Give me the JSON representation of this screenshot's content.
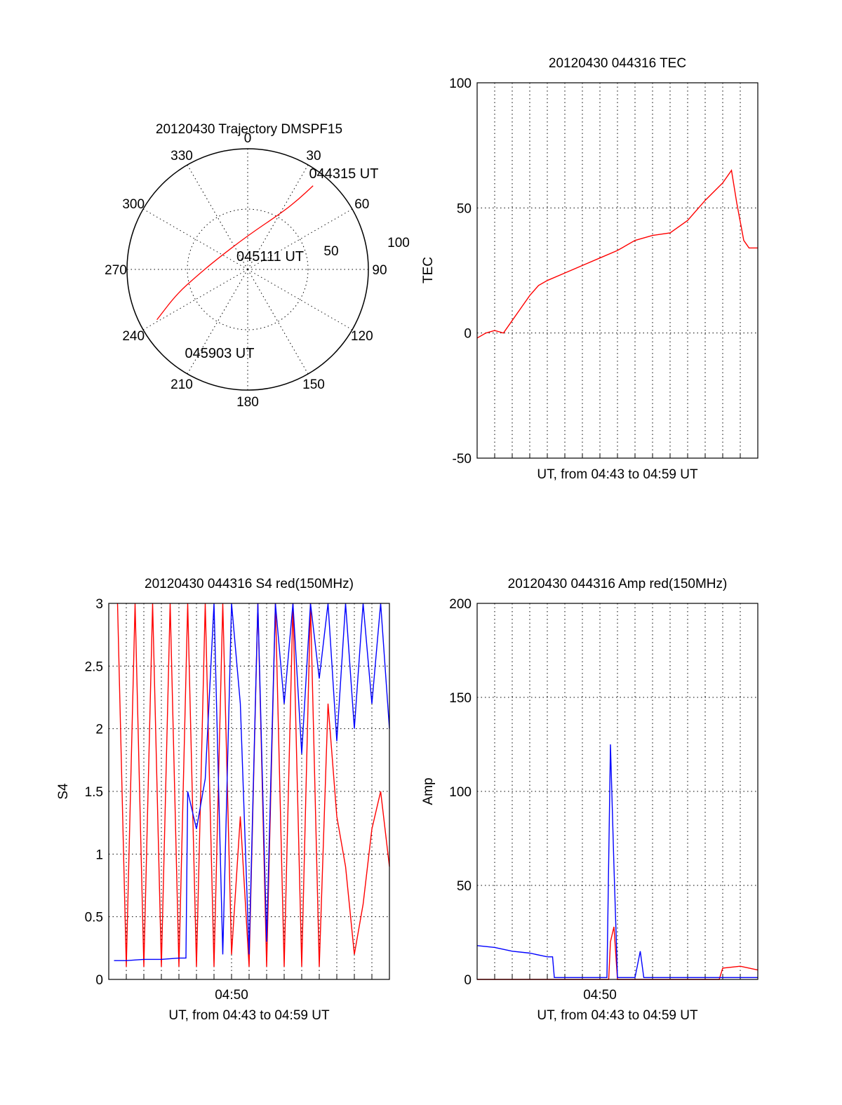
{
  "colors": {
    "red": "#ff0000",
    "blue": "#0000ff",
    "axis": "#000000",
    "background": "#ffffff"
  },
  "chart_data": [
    {
      "id": "trajectory",
      "type": "polar",
      "title": "20120430 Trajectory DMSPF15",
      "angle_labels": [
        "0",
        "30",
        "60",
        "90",
        "120",
        "150",
        "180",
        "210",
        "240",
        "270",
        "300",
        "330"
      ],
      "radial_labels": [
        "50",
        "100"
      ],
      "rlim": [
        0,
        100
      ],
      "grid": true,
      "series": [
        {
          "color": "red",
          "points": [
            {
              "az": 38,
              "r": 88
            },
            {
              "az": 36,
              "r": 72
            },
            {
              "az": 31,
              "r": 55
            },
            {
              "az": 0,
              "r": 28
            },
            {
              "az": 285,
              "r": 28
            },
            {
              "az": 263,
              "r": 42
            },
            {
              "az": 251,
              "r": 62
            },
            {
              "az": 241,
              "r": 86
            }
          ]
        }
      ],
      "annotations": [
        {
          "text": "044315 UT",
          "az": 38,
          "r": 94
        },
        {
          "text": "045111 UT",
          "az": 355,
          "r": 18
        },
        {
          "text": "045903 UT",
          "az": 232,
          "r": 88
        }
      ]
    },
    {
      "id": "tec",
      "type": "line",
      "title": "20120430 044316 TEC",
      "xlabel": "UT, from 04:43 to 04:59 UT",
      "ylabel": "TEC",
      "xlim_minutes": [
        0,
        16
      ],
      "ylim": [
        -50,
        100
      ],
      "yticks": [
        -50,
        0,
        50,
        100
      ],
      "grid": true,
      "series": [
        {
          "color": "red",
          "x": [
            0,
            0.5,
            1.0,
            1.5,
            2.0,
            2.5,
            3.0,
            3.5,
            4.0,
            5.0,
            6.0,
            7.0,
            8.0,
            9.0,
            10.0,
            11.0,
            12.0,
            13.0,
            14.0,
            14.5,
            14.8,
            15.2,
            15.5,
            16.0
          ],
          "y": [
            -2,
            0,
            1,
            0,
            5,
            10,
            15,
            19,
            21,
            24,
            27,
            30,
            33,
            37,
            39,
            40,
            45,
            53,
            60,
            65,
            52,
            37,
            34,
            34
          ]
        }
      ]
    },
    {
      "id": "s4",
      "type": "line",
      "title": "20120430 044316 S4 red(150MHz)",
      "xlabel": "UT, from 04:43 to 04:59 UT",
      "ylabel": "S4",
      "xticklabels": [
        {
          "minute": 7,
          "label": "04:50"
        }
      ],
      "xlim_minutes": [
        0,
        16
      ],
      "ylim": [
        0,
        3
      ],
      "yticks": [
        "0",
        "0.5",
        "1",
        "1.5",
        "2",
        "2.5",
        "3"
      ],
      "grid": true,
      "series": [
        {
          "color": "red",
          "x": [
            0.5,
            1.0,
            1.5,
            2.0,
            2.5,
            3.0,
            3.5,
            4.0,
            4.5,
            5.0,
            5.5,
            6.0,
            6.5,
            7.0,
            7.5,
            8.0,
            8.5,
            9.0,
            9.5,
            10.0,
            10.5,
            11.0,
            11.5,
            12.0,
            12.5,
            13.0,
            13.5,
            14.0,
            14.5,
            15.0,
            15.5,
            16.0
          ],
          "y": [
            3,
            0.1,
            3,
            0.1,
            3,
            0.1,
            3,
            0.1,
            3,
            0.1,
            3,
            0.1,
            3,
            0.2,
            1.3,
            0.1,
            3,
            0.1,
            3,
            0.1,
            3,
            0.1,
            3,
            0.1,
            2.2,
            1.3,
            0.9,
            0.2,
            0.6,
            1.2,
            1.5,
            0.9
          ]
        },
        {
          "color": "blue",
          "x": [
            0.3,
            1.0,
            2.0,
            3.0,
            4.0,
            4.4,
            4.5,
            5.0,
            5.5,
            6.0,
            6.5,
            7.0,
            7.5,
            8.0,
            8.5,
            9.0,
            9.5,
            10.0,
            10.5,
            11.0,
            11.5,
            12.0,
            12.5,
            13.0,
            13.5,
            14.0,
            14.5,
            15.0,
            15.5,
            16.0
          ],
          "y": [
            0.15,
            0.15,
            0.16,
            0.16,
            0.17,
            0.17,
            1.5,
            1.2,
            1.6,
            3,
            0.2,
            3,
            2.2,
            0.2,
            3,
            0.3,
            3,
            2.2,
            3,
            1.8,
            3,
            2.4,
            3,
            1.9,
            3,
            2.0,
            3,
            2.2,
            3,
            2.0
          ]
        }
      ]
    },
    {
      "id": "amp",
      "type": "line",
      "title": "20120430 044316 Amp red(150MHz)",
      "xlabel": "UT, from 04:43 to 04:59 UT",
      "ylabel": "Amp",
      "xticklabels": [
        {
          "minute": 7,
          "label": "04:50"
        }
      ],
      "xlim_minutes": [
        0,
        16
      ],
      "ylim": [
        0,
        200
      ],
      "yticks": [
        0,
        50,
        100,
        150,
        200
      ],
      "grid": true,
      "series": [
        {
          "color": "red",
          "x": [
            0,
            7.5,
            7.6,
            7.8,
            8.0,
            9.0,
            13.8,
            14.0,
            15.0,
            16.0
          ],
          "y": [
            0,
            0,
            20,
            28,
            0,
            0,
            0,
            6,
            7,
            5
          ]
        },
        {
          "color": "blue",
          "x": [
            0,
            1.0,
            2.0,
            3.0,
            4.0,
            4.3,
            4.4,
            5.0,
            6.0,
            7.0,
            7.4,
            7.6,
            7.8,
            8.0,
            9.0,
            9.3,
            9.5,
            10.0,
            12.0,
            14.0,
            16.0
          ],
          "y": [
            18,
            17,
            15,
            14,
            12,
            12,
            1,
            1,
            1,
            1,
            1,
            125,
            60,
            1,
            1,
            15,
            1,
            1,
            1,
            1,
            1
          ]
        }
      ]
    }
  ]
}
